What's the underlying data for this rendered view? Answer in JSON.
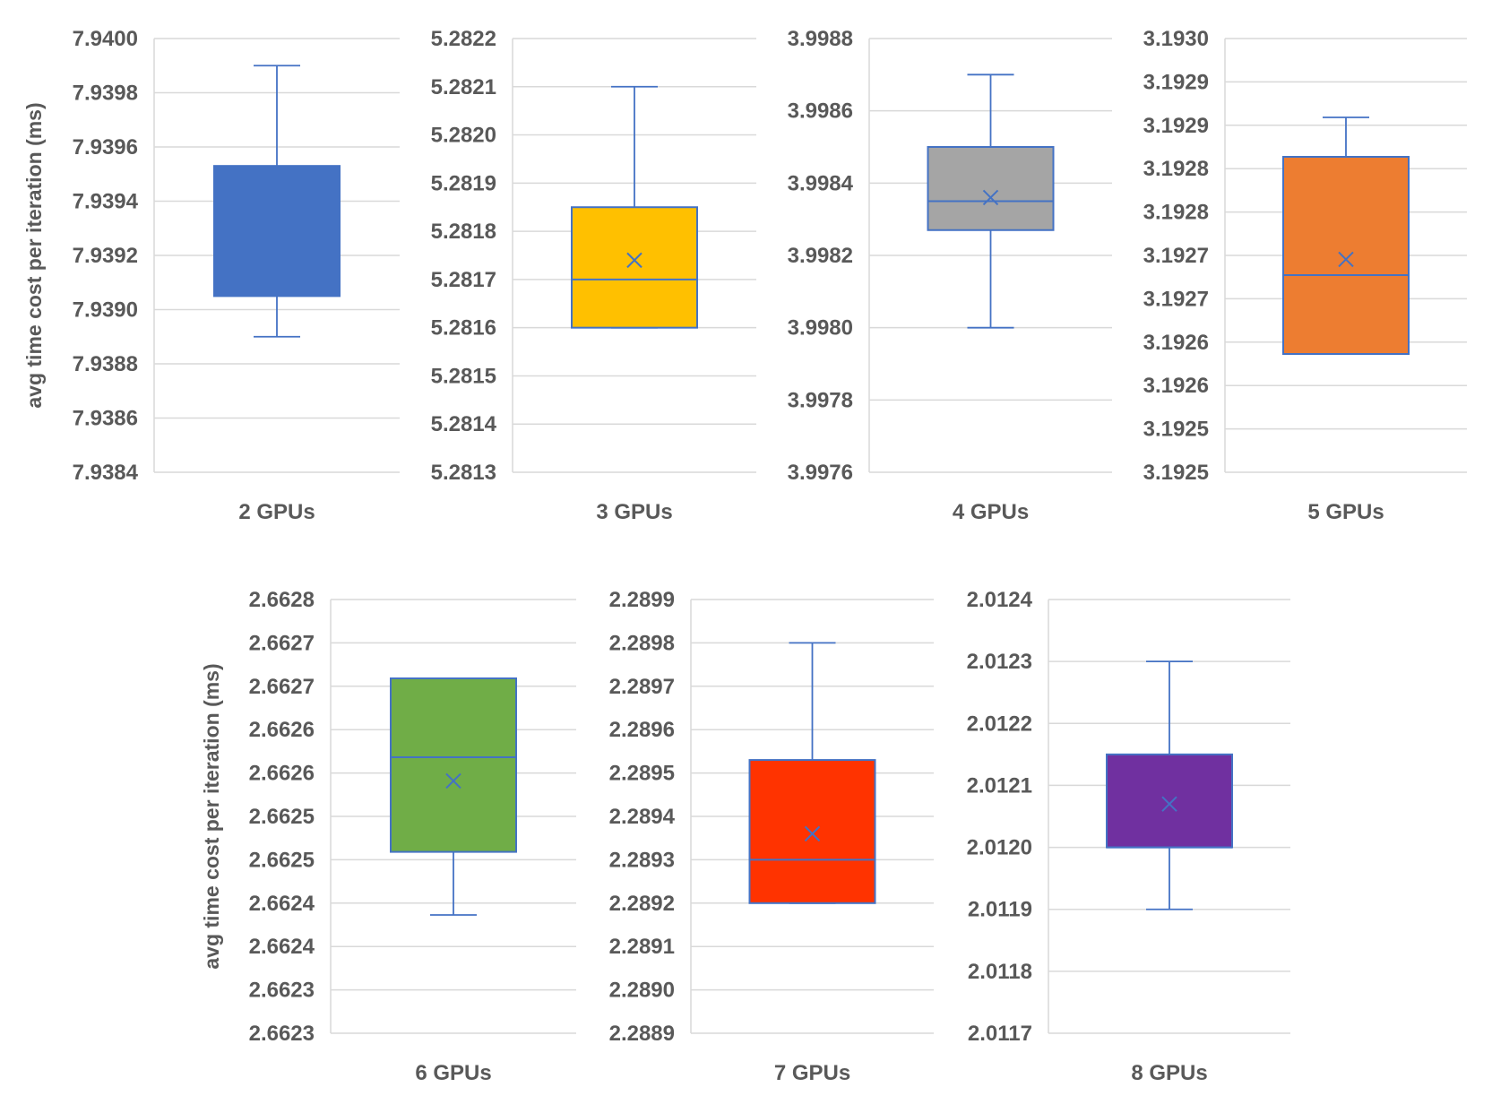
{
  "chart_data": [
    {
      "type": "box",
      "category": "2 GPUs",
      "ylabel": "avg time cost per iteration (ms)",
      "ylim": [
        7.9384,
        7.94
      ],
      "tick_labels": [
        "7.9400",
        "7.9398",
        "7.9396",
        "7.9394",
        "7.9392",
        "7.9390",
        "7.9388",
        "7.9386",
        "7.9384"
      ],
      "color": "#4472C4",
      "min": 7.9389,
      "q1": 7.93905,
      "median": 7.9393,
      "q3": 7.93953,
      "max": 7.9399,
      "mean": 7.93932
    },
    {
      "type": "box",
      "category": "3 GPUs",
      "ylabel": "",
      "ylim": [
        5.2813,
        5.2822
      ],
      "tick_labels": [
        "5.2822",
        "5.2821",
        "5.2820",
        "5.2819",
        "5.2818",
        "5.2817",
        "5.2816",
        "5.2815",
        "5.2814",
        "5.2813"
      ],
      "color": "#FFC000",
      "min": 5.2816,
      "q1": 5.2816,
      "median": 5.2817,
      "q3": 5.28185,
      "max": 5.2821,
      "mean": 5.28174
    },
    {
      "type": "box",
      "category": "4 GPUs",
      "ylabel": "",
      "ylim": [
        3.9976,
        3.9988
      ],
      "tick_labels": [
        "3.9988",
        "3.9986",
        "3.9984",
        "3.9982",
        "3.9980",
        "3.9978",
        "3.9976"
      ],
      "color": "#A5A5A5",
      "min": 3.998,
      "q1": 3.99827,
      "median": 3.99835,
      "q3": 3.9985,
      "max": 3.9987,
      "mean": 3.99836
    },
    {
      "type": "box",
      "category": "5 GPUs",
      "ylabel": "",
      "ylim": [
        3.19245,
        3.193
      ],
      "tick_labels": [
        "3.1930",
        "3.1929",
        "3.1929",
        "3.1928",
        "3.1928",
        "3.1927",
        "3.1927",
        "3.1926",
        "3.1926",
        "3.1925",
        "3.1925"
      ],
      "color": "#ED7D31",
      "min": 3.1926,
      "q1": 3.1926,
      "median": 3.1927,
      "q3": 3.19285,
      "max": 3.1929,
      "mean": 3.19272
    },
    {
      "type": "box",
      "category": "6 GPUs",
      "ylabel": "avg time cost per iteration (ms)",
      "ylim": [
        2.66225,
        2.6628
      ],
      "tick_labels": [
        "2.6628",
        "2.6627",
        "2.6627",
        "2.6626",
        "2.6626",
        "2.6625",
        "2.6625",
        "2.6624",
        "2.6624",
        "2.6623",
        "2.6623"
      ],
      "color": "#70AD47",
      "min": 2.6624,
      "q1": 2.66248,
      "median": 2.6626,
      "q3": 2.6627,
      "max": 2.6627,
      "mean": 2.66257
    },
    {
      "type": "box",
      "category": "7 GPUs",
      "ylabel": "",
      "ylim": [
        2.2889,
        2.2899
      ],
      "tick_labels": [
        "2.2899",
        "2.2898",
        "2.2897",
        "2.2896",
        "2.2895",
        "2.2894",
        "2.2893",
        "2.2892",
        "2.2891",
        "2.2890",
        "2.2889"
      ],
      "color": "#FF3300",
      "min": 2.2892,
      "q1": 2.2892,
      "median": 2.2893,
      "q3": 2.28953,
      "max": 2.2898,
      "mean": 2.28936
    },
    {
      "type": "box",
      "category": "8 GPUs",
      "ylabel": "",
      "ylim": [
        2.0117,
        2.0124
      ],
      "tick_labels": [
        "2.0124",
        "2.0123",
        "2.0122",
        "2.0121",
        "2.0120",
        "2.0119",
        "2.0118",
        "2.0117"
      ],
      "color": "#7030A0",
      "min": 2.0119,
      "q1": 2.012,
      "median": 2.012,
      "q3": 2.01215,
      "max": 2.0123,
      "mean": 2.01207
    }
  ]
}
